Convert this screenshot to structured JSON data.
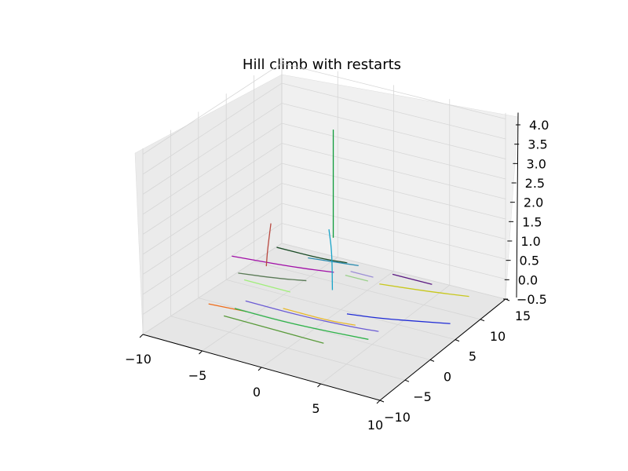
{
  "chart_data": {
    "type": "line",
    "projection": "3d",
    "title": "Hill climb with restarts",
    "xlabel": "",
    "ylabel": "",
    "zlabel": "",
    "xlim": [
      -10,
      10
    ],
    "ylim": [
      -10,
      15
    ],
    "zlim": [
      -0.5,
      4.0
    ],
    "x_ticks": [
      "−10",
      "−5",
      "0",
      "5",
      "10"
    ],
    "y_ticks": [
      "−10",
      "−5",
      "0",
      "5",
      "10",
      "15"
    ],
    "z_ticks": [
      "−0.5",
      "0.0",
      "0.5",
      "1.0",
      "1.5",
      "2.0",
      "2.5",
      "3.0",
      "3.5",
      "4.0"
    ],
    "grid": true,
    "legend": "none",
    "series": [
      {
        "color": "#1f2bd6",
        "points": [
          [
            2.5,
            0.7,
            0
          ],
          [
            5.0,
            1.5,
            0
          ],
          [
            8.0,
            3.0,
            0
          ],
          [
            10.0,
            4.0,
            0
          ]
        ]
      },
      {
        "color": "#6b5bd4",
        "points": [
          [
            -5.0,
            -2.0,
            0
          ],
          [
            0.0,
            -2.0,
            0
          ],
          [
            4.0,
            -1.5,
            0
          ],
          [
            6.0,
            -1.0,
            0
          ]
        ]
      },
      {
        "color": "#e8b82a",
        "points": [
          [
            -2.0,
            -1.5,
            0
          ],
          [
            2.0,
            -1.5,
            0
          ],
          [
            4.0,
            -1.0,
            0
          ]
        ]
      },
      {
        "color": "#ef6d1b",
        "points": [
          [
            -7.0,
            -4.5,
            0
          ],
          [
            -4.0,
            -4.0,
            0
          ]
        ]
      },
      {
        "color": "#2fb34a",
        "points": [
          [
            -5.0,
            -4.0,
            0
          ],
          [
            0.0,
            -4.0,
            0
          ],
          [
            6.0,
            -3.0,
            0
          ]
        ]
      },
      {
        "color": "#5a9b3c",
        "points": [
          [
            -5.0,
            -6.0,
            0
          ],
          [
            0.0,
            -6.0,
            0
          ],
          [
            3.5,
            -6.0,
            0
          ]
        ]
      },
      {
        "color": "#c8c81e",
        "points": [
          [
            2.0,
            8.0,
            0
          ],
          [
            6.0,
            9.0,
            0
          ],
          [
            9.0,
            10.0,
            0
          ]
        ]
      },
      {
        "color": "#5b1a82",
        "points": [
          [
            2.0,
            10.5,
            0
          ],
          [
            5.5,
            10.5,
            0
          ]
        ]
      },
      {
        "color": "#9c8fd6",
        "points": [
          [
            -1.0,
            9.0,
            0
          ],
          [
            1.0,
            9.0,
            0
          ]
        ]
      },
      {
        "color": "#9ad08a",
        "points": [
          [
            -1.0,
            8.0,
            0
          ],
          [
            1.0,
            8.0,
            0
          ]
        ]
      },
      {
        "color": "#a10ea7",
        "points": [
          [
            -10.0,
            6.0,
            0
          ],
          [
            -5.0,
            7.0,
            0
          ],
          [
            -2.0,
            8.0,
            0
          ]
        ]
      },
      {
        "color": "#1b4b26",
        "points": [
          [
            -8.0,
            10.0,
            0
          ],
          [
            -4.0,
            10.0,
            0
          ],
          [
            -2.0,
            10.5,
            0
          ]
        ]
      },
      {
        "color": "#2a8cb0",
        "points": [
          [
            -5.0,
            9.5,
            0
          ],
          [
            -3.0,
            10.0,
            0
          ],
          [
            -1.0,
            10.5,
            0
          ]
        ]
      },
      {
        "color": "#5a7a56",
        "points": [
          [
            -8.0,
            3.0,
            0
          ],
          [
            -5.0,
            4.0,
            0
          ],
          [
            -3.0,
            5.0,
            0
          ]
        ]
      },
      {
        "color": "#a0ee7a",
        "points": [
          [
            -7.0,
            2.0,
            0
          ],
          [
            -5.0,
            2.0,
            0
          ],
          [
            -3.0,
            2.0,
            0
          ]
        ]
      },
      {
        "color": "#b8473e",
        "points": [
          [
            -6.5,
            5.0,
            0.1
          ],
          [
            -6.4,
            5.0,
            0.5
          ],
          [
            -6.1,
            5.0,
            1.2
          ]
        ]
      },
      {
        "color": "#0f9b3a",
        "points": [
          [
            -3.0,
            10.0,
            3.3
          ],
          [
            -3.0,
            10.0,
            2.0
          ],
          [
            -3.0,
            10.0,
            0.6
          ]
        ]
      },
      {
        "color": "#18a3c8",
        "points": [
          [
            -1.5,
            6.0,
            1.3
          ],
          [
            -1.0,
            5.5,
            0.8
          ],
          [
            -0.5,
            4.5,
            0.0
          ]
        ]
      }
    ]
  }
}
